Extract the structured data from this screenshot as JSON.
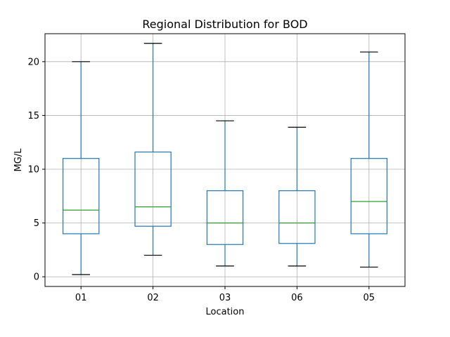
{
  "chart_data": {
    "type": "box",
    "title": "Regional Distribution for BOD",
    "xlabel": "Location",
    "ylabel": "MG/L",
    "ylim": [
      -0.9,
      22.6
    ],
    "yticks": [
      0,
      5,
      10,
      15,
      20
    ],
    "grid": true,
    "categories": [
      "01",
      "02",
      "03",
      "06",
      "05"
    ],
    "boxes": [
      {
        "category": "01",
        "whisker_low": 0.2,
        "q1": 4.0,
        "median": 6.2,
        "q3": 11.0,
        "whisker_high": 20.0
      },
      {
        "category": "02",
        "whisker_low": 2.0,
        "q1": 4.7,
        "median": 6.5,
        "q3": 11.6,
        "whisker_high": 21.7
      },
      {
        "category": "03",
        "whisker_low": 1.0,
        "q1": 3.0,
        "median": 5.0,
        "q3": 8.0,
        "whisker_high": 14.5
      },
      {
        "category": "06",
        "whisker_low": 1.0,
        "q1": 3.1,
        "median": 5.0,
        "q3": 8.0,
        "whisker_high": 13.9
      },
      {
        "category": "05",
        "whisker_low": 0.9,
        "q1": 4.0,
        "median": 7.0,
        "q3": 11.0,
        "whisker_high": 20.9
      }
    ],
    "colors": {
      "box": "#1f77b4",
      "median": "#2ca02c",
      "cap": "#000000",
      "grid": "#b0b0b0",
      "axes": "#000000"
    }
  }
}
